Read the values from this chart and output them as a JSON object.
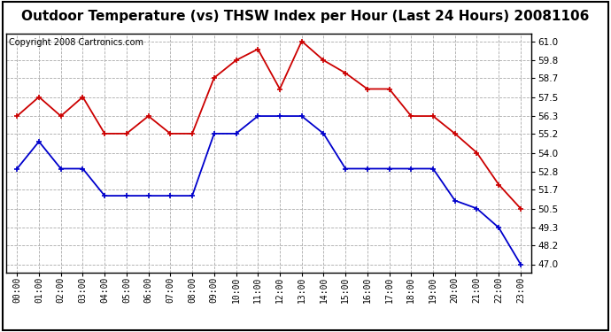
{
  "title": "Outdoor Temperature (vs) THSW Index per Hour (Last 24 Hours) 20081106",
  "copyright": "Copyright 2008 Cartronics.com",
  "hours": [
    "00:00",
    "01:00",
    "02:00",
    "03:00",
    "04:00",
    "05:00",
    "06:00",
    "07:00",
    "08:00",
    "09:00",
    "10:00",
    "11:00",
    "12:00",
    "13:00",
    "14:00",
    "15:00",
    "16:00",
    "17:00",
    "18:00",
    "19:00",
    "20:00",
    "21:00",
    "22:00",
    "23:00"
  ],
  "temp_blue": [
    53.0,
    54.7,
    53.0,
    53.0,
    51.3,
    51.3,
    51.3,
    51.3,
    51.3,
    55.2,
    55.2,
    56.3,
    56.3,
    56.3,
    55.2,
    53.0,
    53.0,
    53.0,
    53.0,
    53.0,
    51.0,
    50.5,
    49.3,
    47.0
  ],
  "thsw_red": [
    56.3,
    57.5,
    56.3,
    57.5,
    55.2,
    55.2,
    56.3,
    55.2,
    55.2,
    58.7,
    59.8,
    60.5,
    58.0,
    61.0,
    59.8,
    59.0,
    58.0,
    58.0,
    56.3,
    56.3,
    55.2,
    54.0,
    52.0,
    50.5
  ],
  "ylim_min": 46.5,
  "ylim_max": 61.5,
  "yticks": [
    47.0,
    48.2,
    49.3,
    50.5,
    51.7,
    52.8,
    54.0,
    55.2,
    56.3,
    57.5,
    58.7,
    59.8,
    61.0
  ],
  "bg_color": "#ffffff",
  "grid_color": "#aaaaaa",
  "blue_color": "#0000cc",
  "red_color": "#cc0000",
  "title_fontsize": 11,
  "copyright_fontsize": 7
}
